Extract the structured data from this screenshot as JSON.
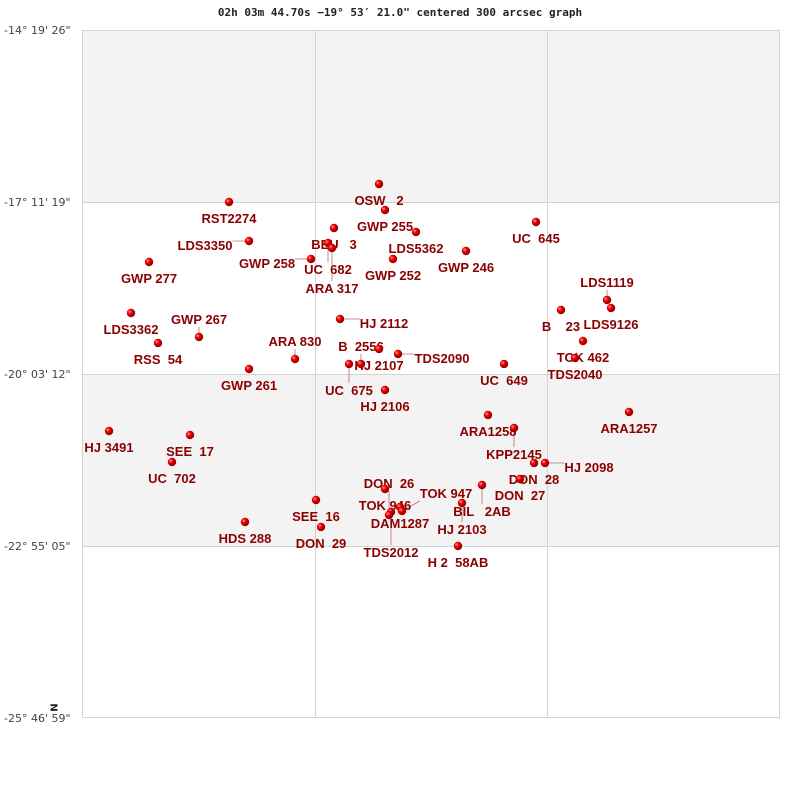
{
  "chart_data": {
    "type": "scatter",
    "title": "02h 03m 44.70s −19° 53′ 21.0\" centered 300 arcsec graph",
    "y_tick_labels": [
      "-14° 19' 26\"",
      "-17° 11' 19\"",
      "-20° 03' 12\"",
      "-22° 55' 05\"",
      "-25° 46' 59\""
    ],
    "orientation_label": "N",
    "grid": true,
    "point_color": "#dd0000",
    "label_color": "#8b0000",
    "stars": [
      "OSW   2",
      "GWP 255",
      "LDS5362",
      "BEU   3",
      "UC  682",
      "ARA 317",
      "GWP 258",
      "GWP 252",
      "GWP 246",
      "UC  645",
      "RST2274",
      "LDS3350",
      "GWP 277",
      "LDS3362",
      "RSS  54",
      "GWP 267",
      "GWP 261",
      "ARA 830",
      "HJ 2112",
      "HJ 2107",
      "TDS2090",
      "UC  675",
      "B  2556",
      "HJ 2106",
      "UC  649",
      "B    23",
      "LDS1119",
      "LDS9126",
      "TOK 462",
      "TDS2040",
      "ARA1257",
      "ARA1258",
      "KPP2145",
      "HJ 3491",
      "SEE  17",
      "UC  702",
      "HDS 288",
      "SEE  16",
      "DON  29",
      "TOK 946",
      "DAM1287",
      "TOK 947",
      "TDS2012",
      "DON  26",
      "BIL   2AB",
      "HJ 2103",
      "DON  27",
      "DON  28",
      "HJ 2098",
      "H 2  58AB"
    ]
  }
}
